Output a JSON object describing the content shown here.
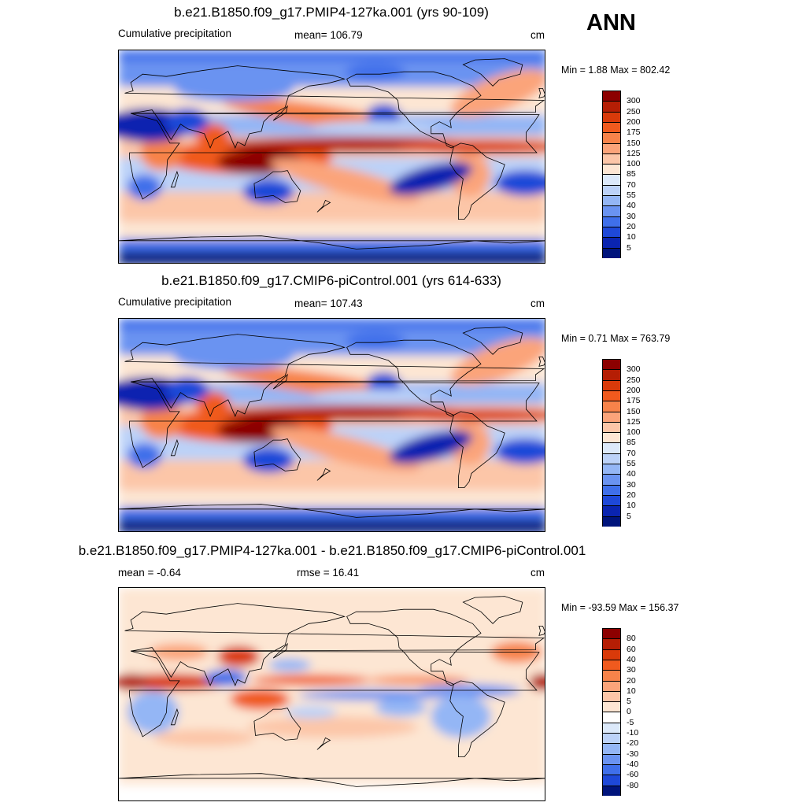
{
  "season": "ANN",
  "panels": [
    {
      "title": "b.e21.B1850.f09_g17.PMIP4-127ka.001 (yrs 90-109)",
      "left_label": "Cumulative precipitation",
      "center_label": "mean= 106.79",
      "units": "cm",
      "minmax": "Min =   1.88 Max = 802.42",
      "kind": "precip"
    },
    {
      "title": "b.e21.B1850.f09_g17.CMIP6-piControl.001 (yrs 614-633)",
      "left_label": "Cumulative precipitation",
      "center_label": "mean= 107.43",
      "units": "cm",
      "minmax": "Min =   0.71 Max = 763.79",
      "kind": "precip"
    },
    {
      "title": "b.e21.B1850.f09_g17.PMIP4-127ka.001 - b.e21.B1850.f09_g17.CMIP6-piControl.001",
      "left_label": "mean =  -0.64",
      "center_label": "rmse =  16.41",
      "units": "cm",
      "minmax": "Min = -93.59 Max = 156.37",
      "kind": "diff"
    }
  ],
  "colorbars": {
    "precip": {
      "labels": [
        "300",
        "250",
        "200",
        "175",
        "150",
        "125",
        "100",
        "85",
        "70",
        "55",
        "40",
        "30",
        "20",
        "10",
        "5"
      ],
      "colors": [
        "#8c0000",
        "#b51e05",
        "#d93a0a",
        "#f05a1e",
        "#f7834a",
        "#fba47a",
        "#fcc6a8",
        "#fde6d3",
        "#dce9fa",
        "#bcd2f8",
        "#94b6f5",
        "#6a93f1",
        "#3f6fea",
        "#1e48d8",
        "#0a24b0",
        "#00147c"
      ]
    },
    "diff": {
      "labels": [
        "80",
        "60",
        "40",
        "30",
        "20",
        "10",
        "5",
        "0",
        "-5",
        "-10",
        "-20",
        "-30",
        "-40",
        "-60",
        "-80"
      ],
      "colors": [
        "#8c0000",
        "#b51e05",
        "#d93a0a",
        "#f05a1e",
        "#f7834a",
        "#fba47a",
        "#fcc6a8",
        "#fde6d3",
        "#ffffff",
        "#dce9fa",
        "#bcd2f8",
        "#94b6f5",
        "#6a93f1",
        "#3f6fea",
        "#1e48d8",
        "#00147c"
      ]
    }
  }
}
